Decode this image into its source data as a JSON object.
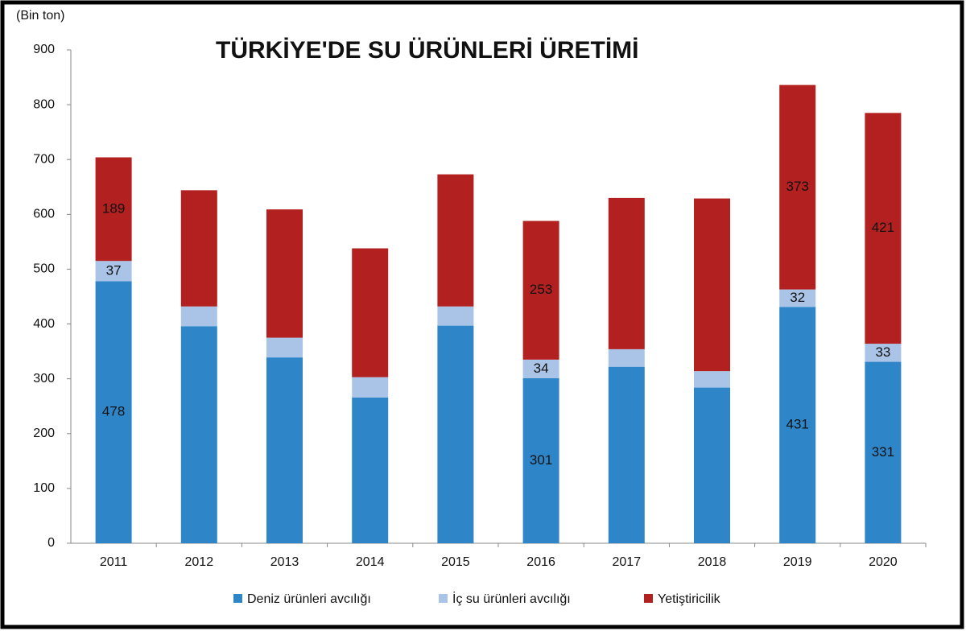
{
  "chart_data": {
    "type": "stacked_bar",
    "title": "TÜRKİYE'DE SU ÜRÜNLERİ ÜRETİMİ",
    "y_label": "(Bin ton)",
    "categories": [
      "2011",
      "2012",
      "2013",
      "2014",
      "2015",
      "2016",
      "2017",
      "2018",
      "2019",
      "2020"
    ],
    "series": [
      {
        "name": "Deniz ürünleri avcılığı",
        "color": "#2e86c9",
        "values": [
          478,
          396,
          339,
          266,
          397,
          301,
          322,
          284,
          431,
          331
        ],
        "value_labels": [
          "478",
          null,
          null,
          null,
          null,
          "301",
          null,
          null,
          "431",
          "331"
        ]
      },
      {
        "name": "İç su ürünleri avcılığı",
        "color": "#a9c4e6",
        "values": [
          37,
          36,
          36,
          37,
          35,
          34,
          32,
          30,
          32,
          33
        ],
        "value_labels": [
          "37",
          null,
          null,
          null,
          null,
          "34",
          null,
          null,
          "32",
          "33"
        ]
      },
      {
        "name": "Yetiştiricilik",
        "color": "#b2201f",
        "values": [
          189,
          212,
          234,
          235,
          241,
          253,
          276,
          315,
          373,
          421
        ],
        "value_labels": [
          "189",
          null,
          null,
          null,
          null,
          "253",
          null,
          null,
          "373",
          "421"
        ]
      }
    ],
    "ylim": [
      0,
      900
    ],
    "yticks": [
      0,
      100,
      200,
      300,
      400,
      500,
      600,
      700,
      800,
      900
    ],
    "grid": false,
    "legend": "bottom"
  }
}
